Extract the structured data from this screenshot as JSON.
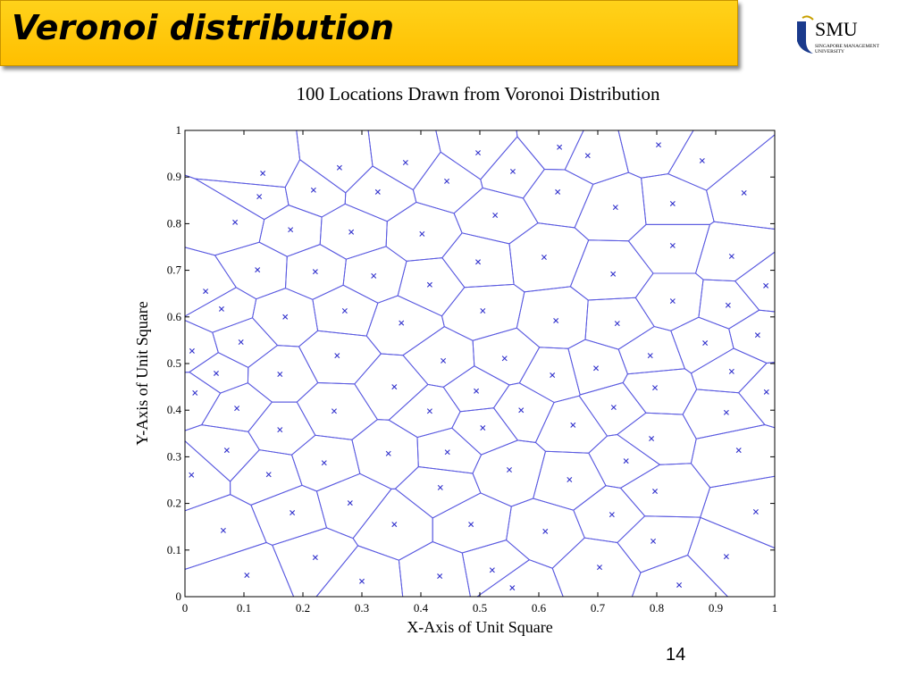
{
  "slide": {
    "title": "Veronoi distribution",
    "page_number": "14"
  },
  "logo": {
    "name": "SMU",
    "line1": "SINGAPORE MANAGEMENT",
    "line2": "UNIVERSITY"
  },
  "chart_data": {
    "type": "scatter",
    "title": "100 Locations Drawn from Voronoi Distribution",
    "x_label": "X-Axis of Unit Square",
    "y_label": "Y-Axis of Unit Square",
    "color": "#3333cc",
    "edge_color": "#5a5ae0",
    "voronoi": true,
    "xlim": [
      0,
      1
    ],
    "ylim": [
      0,
      1
    ],
    "xticks": [
      0,
      0.1,
      0.2,
      0.3,
      0.4,
      0.5,
      0.6,
      0.7,
      0.8,
      0.9,
      1
    ],
    "yticks": [
      0,
      0.1,
      0.2,
      0.3,
      0.4,
      0.5,
      0.6,
      0.7,
      0.8,
      0.9,
      1
    ],
    "x": [
      0.132,
      0.126,
      0.262,
      0.218,
      0.327,
      0.374,
      0.444,
      0.497,
      0.556,
      0.635,
      0.683,
      0.632,
      0.526,
      0.402,
      0.282,
      0.179,
      0.085,
      0.803,
      0.877,
      0.948,
      0.827,
      0.73,
      0.609,
      0.497,
      0.827,
      0.927,
      0.726,
      0.32,
      0.221,
      0.123,
      0.415,
      0.035,
      0.985,
      0.062,
      0.17,
      0.271,
      0.505,
      0.629,
      0.733,
      0.827,
      0.921,
      0.971,
      0.367,
      0.095,
      0.012,
      0.882,
      0.789,
      0.927,
      0.053,
      0.161,
      0.258,
      0.438,
      0.542,
      0.623,
      0.697,
      0.017,
      0.088,
      0.355,
      0.494,
      0.797,
      0.986,
      0.253,
      0.415,
      0.57,
      0.727,
      0.918,
      0.161,
      0.505,
      0.658,
      0.071,
      0.345,
      0.445,
      0.791,
      0.939,
      0.011,
      0.142,
      0.236,
      0.55,
      0.748,
      0.652,
      0.433,
      0.797,
      0.28,
      0.182,
      0.724,
      0.968,
      0.355,
      0.485,
      0.065,
      0.611,
      0.794,
      0.221,
      0.918,
      0.703,
      0.105,
      0.432,
      0.521,
      0.3,
      0.555,
      0.838
    ],
    "values": [
      0.908,
      0.858,
      0.92,
      0.872,
      0.868,
      0.931,
      0.891,
      0.952,
      0.912,
      0.964,
      0.946,
      0.868,
      0.818,
      0.778,
      0.782,
      0.787,
      0.803,
      0.969,
      0.935,
      0.866,
      0.843,
      0.835,
      0.728,
      0.718,
      0.753,
      0.73,
      0.692,
      0.688,
      0.697,
      0.701,
      0.669,
      0.655,
      0.667,
      0.617,
      0.6,
      0.613,
      0.613,
      0.592,
      0.586,
      0.634,
      0.625,
      0.561,
      0.587,
      0.546,
      0.527,
      0.544,
      0.517,
      0.483,
      0.479,
      0.477,
      0.517,
      0.506,
      0.511,
      0.475,
      0.49,
      0.437,
      0.404,
      0.45,
      0.441,
      0.448,
      0.439,
      0.398,
      0.398,
      0.4,
      0.406,
      0.395,
      0.358,
      0.362,
      0.368,
      0.314,
      0.307,
      0.31,
      0.339,
      0.314,
      0.261,
      0.262,
      0.287,
      0.272,
      0.291,
      0.251,
      0.234,
      0.226,
      0.201,
      0.18,
      0.176,
      0.182,
      0.155,
      0.155,
      0.142,
      0.14,
      0.119,
      0.084,
      0.086,
      0.063,
      0.046,
      0.044,
      0.057,
      0.033,
      0.019,
      0.025
    ]
  }
}
